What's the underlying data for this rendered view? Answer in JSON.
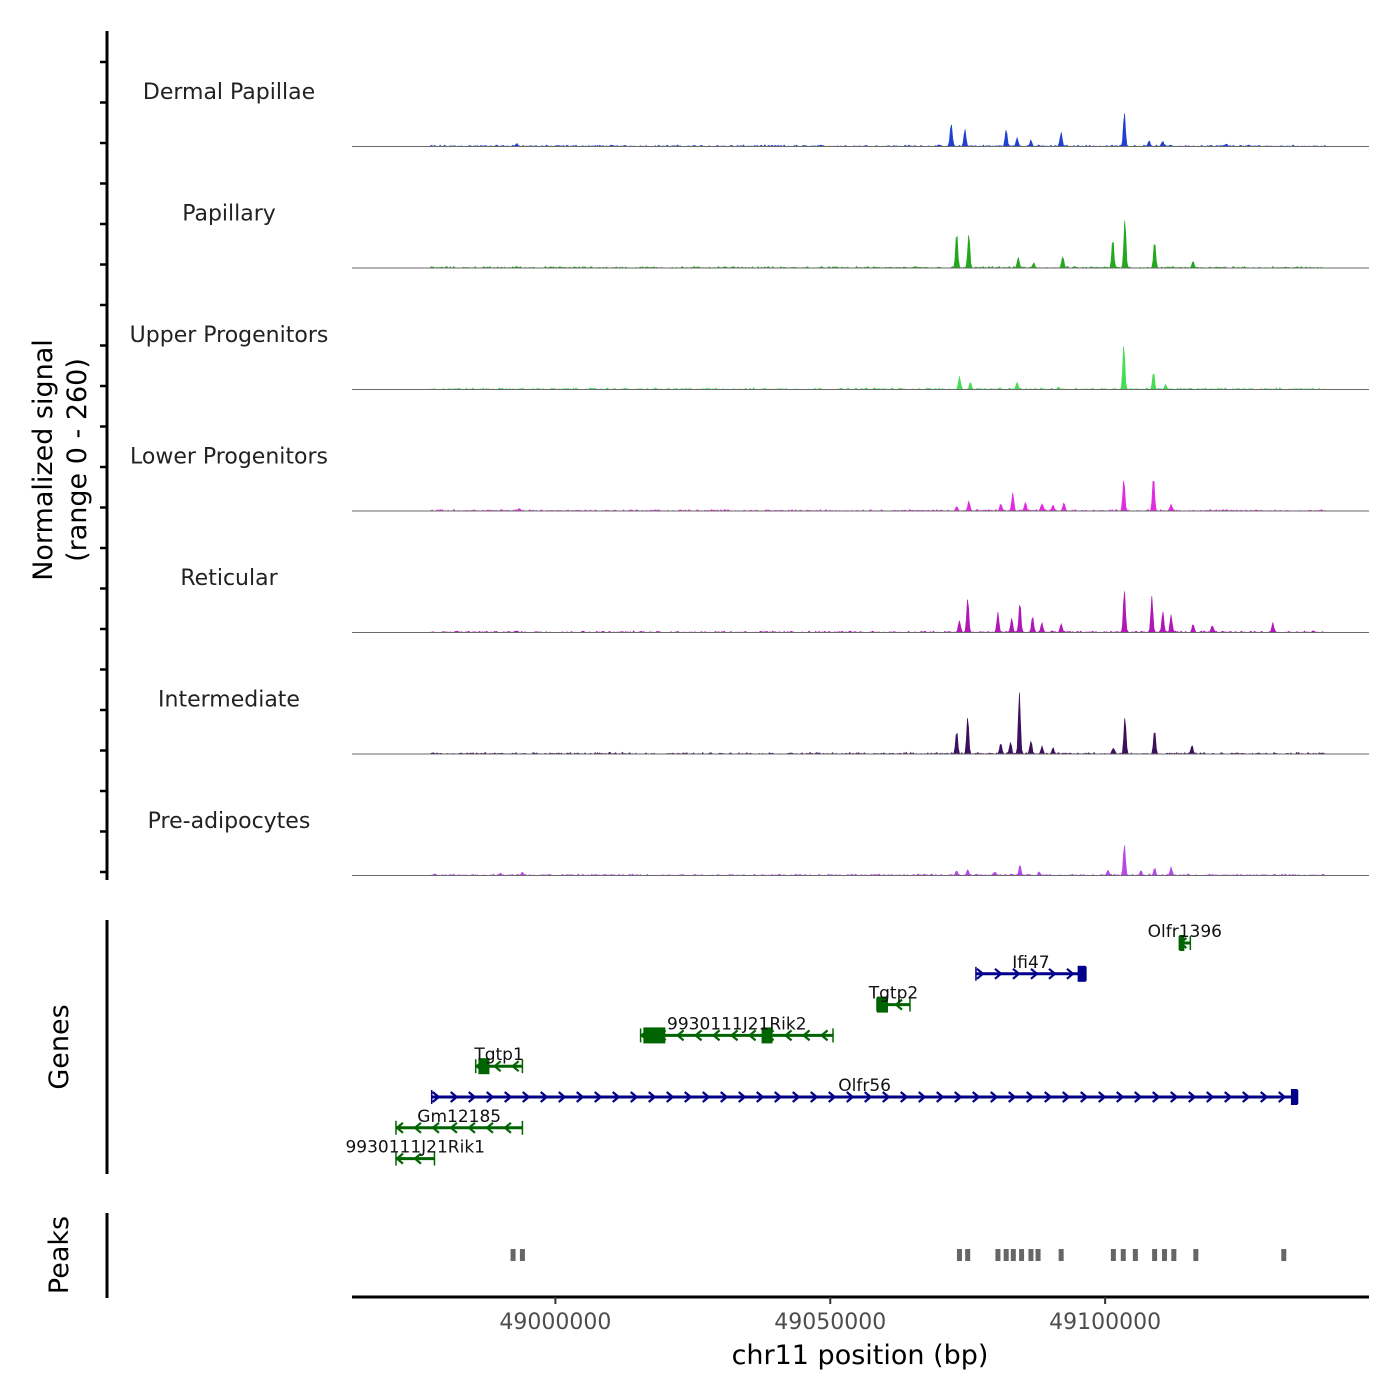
{
  "chart_data": {
    "type": "area",
    "title": "",
    "ylabel": [
      "Normalized signal",
      "(range 0 - 260)"
    ],
    "xlabel": "chr11 position (bp)",
    "xlim": [
      48963000,
      49148000
    ],
    "ylim": [
      0,
      260
    ],
    "xticks": [
      49000000,
      49050000,
      49100000
    ],
    "x_tick_labels": [
      "49000000",
      "49050000",
      "49100000"
    ],
    "tracks": [
      {
        "name": "Dermal Papillae",
        "color": "#2040d0",
        "peaks": [
          [
            48993000,
            5
          ],
          [
            49072000,
            40
          ],
          [
            49074500,
            30
          ],
          [
            49082000,
            30
          ],
          [
            49084000,
            15
          ],
          [
            49086500,
            10
          ],
          [
            49092000,
            25
          ],
          [
            49103500,
            58
          ],
          [
            49108000,
            10
          ],
          [
            49110500,
            8
          ],
          [
            49122000,
            4
          ]
        ]
      },
      {
        "name": "Papillary",
        "color": "#22a81c",
        "peaks": [
          [
            48993000,
            2
          ],
          [
            49073000,
            62
          ],
          [
            49075200,
            59
          ],
          [
            49084200,
            18
          ],
          [
            49087000,
            8
          ],
          [
            49092300,
            20
          ],
          [
            49101400,
            50
          ],
          [
            49103600,
            85
          ],
          [
            49109000,
            47
          ],
          [
            49116000,
            12
          ]
        ]
      },
      {
        "name": "Upper Progenitors",
        "color": "#44dd55",
        "peaks": [
          [
            49073500,
            22
          ],
          [
            49075500,
            12
          ],
          [
            49084000,
            12
          ],
          [
            49091500,
            4
          ],
          [
            49103400,
            78
          ],
          [
            49108800,
            30
          ],
          [
            49111000,
            8
          ]
        ]
      },
      {
        "name": "Lower Progenitors",
        "color": "#e22be0",
        "peaks": [
          [
            48993500,
            4
          ],
          [
            49073000,
            8
          ],
          [
            49075200,
            16
          ],
          [
            49081000,
            12
          ],
          [
            49083200,
            30
          ],
          [
            49085500,
            15
          ],
          [
            49088500,
            12
          ],
          [
            49090500,
            10
          ],
          [
            49092500,
            14
          ],
          [
            49103400,
            55
          ],
          [
            49108800,
            60
          ],
          [
            49112000,
            12
          ]
        ]
      },
      {
        "name": "Reticular",
        "color": "#b116b8",
        "peaks": [
          [
            48993000,
            3
          ],
          [
            49073500,
            20
          ],
          [
            49075000,
            60
          ],
          [
            49080500,
            34
          ],
          [
            49083000,
            25
          ],
          [
            49084500,
            52
          ],
          [
            49086800,
            28
          ],
          [
            49088500,
            17
          ],
          [
            49092000,
            15
          ],
          [
            49103500,
            75
          ],
          [
            49108500,
            62
          ],
          [
            49110500,
            37
          ],
          [
            49112000,
            30
          ],
          [
            49116000,
            14
          ],
          [
            49119500,
            12
          ],
          [
            49130500,
            16
          ]
        ]
      },
      {
        "name": "Intermediate",
        "color": "#3d0f5e",
        "peaks": [
          [
            49073000,
            40
          ],
          [
            49075000,
            65
          ],
          [
            49081000,
            18
          ],
          [
            49082800,
            20
          ],
          [
            49084400,
            108
          ],
          [
            49086500,
            22
          ],
          [
            49088500,
            12
          ],
          [
            49090500,
            10
          ],
          [
            49101500,
            10
          ],
          [
            49103600,
            65
          ],
          [
            49109000,
            42
          ],
          [
            49115800,
            14
          ]
        ]
      },
      {
        "name": "Pre-adipocytes",
        "color": "#b448e8",
        "peaks": [
          [
            48990000,
            4
          ],
          [
            48994000,
            4
          ],
          [
            49073000,
            8
          ],
          [
            49075000,
            10
          ],
          [
            49080000,
            6
          ],
          [
            49084500,
            18
          ],
          [
            49088000,
            6
          ],
          [
            49100500,
            8
          ],
          [
            49103500,
            55
          ],
          [
            49106500,
            6
          ],
          [
            49109000,
            12
          ],
          [
            49112000,
            14
          ]
        ]
      }
    ],
    "genes_title": "Genes",
    "genes": [
      {
        "name": "Olfr1396",
        "start": 49113500,
        "end": 49115500,
        "strand": "-",
        "row": 0,
        "color": "#006400",
        "exons": [
          [
            49113500,
            49114300
          ]
        ]
      },
      {
        "name": "Ifi47",
        "start": 49076500,
        "end": 49096500,
        "strand": "+",
        "row": 1,
        "color": "#00008b",
        "exons": [
          [
            49095000,
            49096500
          ]
        ]
      },
      {
        "name": "Tgtp2",
        "start": 49058500,
        "end": 49064500,
        "strand": "-",
        "row": 2,
        "color": "#006400",
        "exons": [
          [
            49058500,
            49060500
          ]
        ]
      },
      {
        "name": "9930111J21Rik2",
        "start": 49015500,
        "end": 49050500,
        "strand": "-",
        "row": 3,
        "color": "#006400",
        "exons": [
          [
            49016000,
            49020000
          ],
          [
            49037500,
            49039500
          ]
        ]
      },
      {
        "name": "Tgtp1",
        "start": 48985500,
        "end": 48994000,
        "strand": "-",
        "row": 4,
        "color": "#006400",
        "exons": [
          [
            48986000,
            48988000
          ]
        ]
      },
      {
        "name": "Olfr56",
        "start": 48977500,
        "end": 49135000,
        "strand": "+",
        "row": 5,
        "color": "#00008b",
        "exons": [
          [
            49133800,
            49135000
          ]
        ]
      },
      {
        "name": "Gm12185",
        "start": 48971000,
        "end": 48994000,
        "strand": "-",
        "row": 6,
        "color": "#006400",
        "exons": []
      },
      {
        "name": "9930111J21Rik1",
        "start": 48971000,
        "end": 48978000,
        "strand": "-",
        "row": 7,
        "color": "#006400",
        "exons": []
      }
    ],
    "peaks_title": "Peaks",
    "peak_color": "#666666",
    "peak_regions": [
      48992300,
      48994000,
      49073500,
      49075000,
      49080500,
      49082000,
      49083300,
      49084800,
      49086500,
      49087800,
      49092000,
      49101500,
      49103300,
      49105500,
      49109000,
      49110800,
      49112500,
      49116500,
      49132500
    ]
  }
}
